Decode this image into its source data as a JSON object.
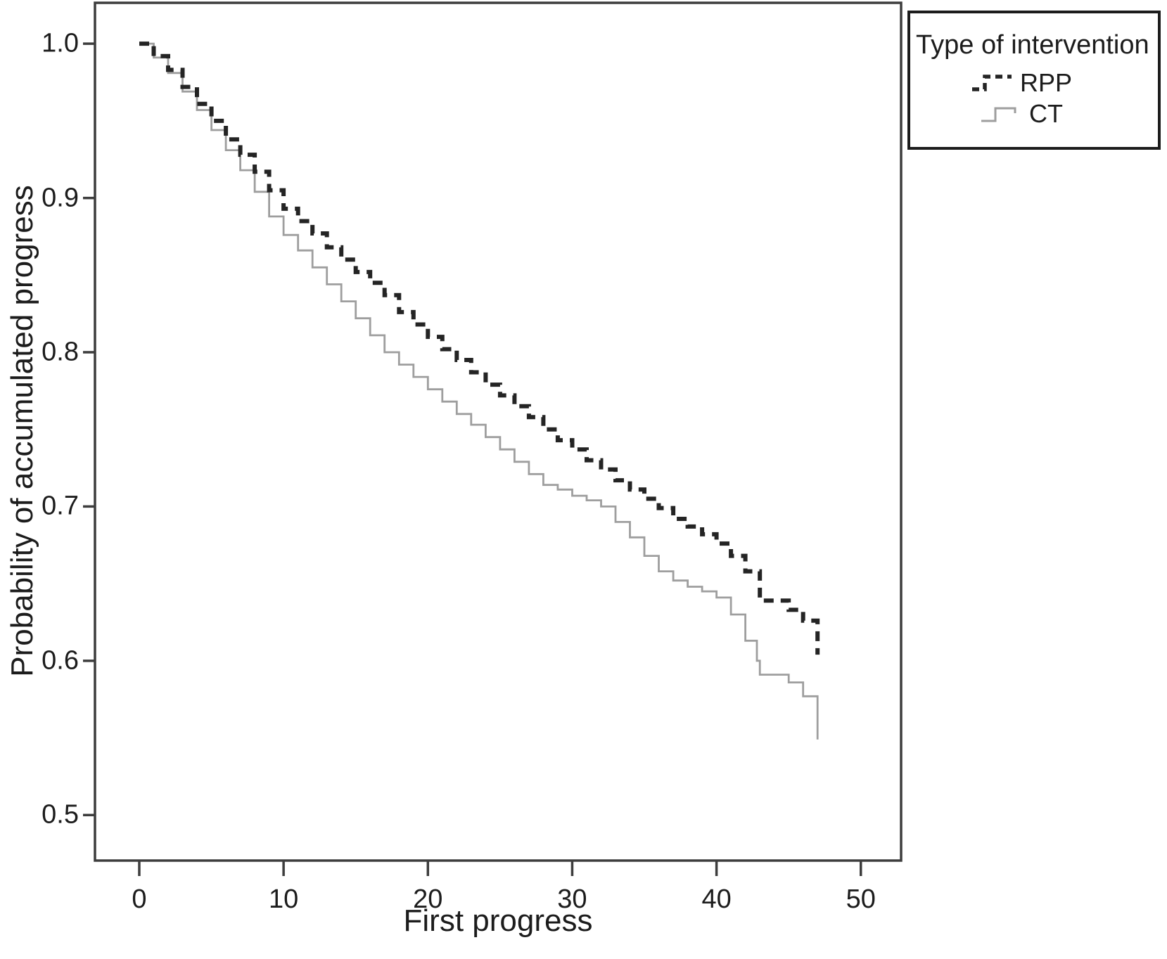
{
  "chart_data": {
    "type": "line",
    "subtype": "kaplan-meier-step",
    "title": "",
    "xlabel": "First progress",
    "ylabel": "Probability of accumulated progress",
    "xlim": [
      -3.07,
      52.79
    ],
    "ylim": [
      0.4705,
      1.0265
    ],
    "grid": false,
    "x_ticks": [
      0,
      10,
      20,
      30,
      40,
      50
    ],
    "x_tick_labels": [
      "0",
      "10",
      "20",
      "30",
      "40",
      "50"
    ],
    "y_ticks": [
      0.5,
      0.6,
      0.7,
      0.8,
      0.9,
      1.0
    ],
    "y_tick_labels": [
      "0.5",
      "0.6",
      "0.7",
      "0.8",
      "0.9",
      "1.0"
    ],
    "axis_color": "#3d3d3d",
    "text_color": "#1c1c1c",
    "legend": {
      "title": "Type of intervention",
      "position": "outside-top-right",
      "entries": [
        {
          "label": "RPP",
          "style": "dashed",
          "color": "#242424"
        },
        {
          "label": "CT",
          "style": "solid",
          "color": "#9e9e9e"
        }
      ]
    },
    "series": [
      {
        "name": "CT",
        "type": "step",
        "color": "#9e9e9e",
        "width": 2.8,
        "dash": null,
        "points": [
          [
            0,
            1.0
          ],
          [
            1,
            0.991
          ],
          [
            2,
            0.981
          ],
          [
            3,
            0.969
          ],
          [
            4,
            0.957
          ],
          [
            5,
            0.944
          ],
          [
            6,
            0.931
          ],
          [
            7,
            0.918
          ],
          [
            8,
            0.904
          ],
          [
            9,
            0.888
          ],
          [
            10,
            0.876
          ],
          [
            11,
            0.866
          ],
          [
            12,
            0.855
          ],
          [
            13,
            0.844
          ],
          [
            14,
            0.833
          ],
          [
            15,
            0.822
          ],
          [
            16,
            0.811
          ],
          [
            17,
            0.8
          ],
          [
            18,
            0.792
          ],
          [
            19,
            0.784
          ],
          [
            20,
            0.776
          ],
          [
            21,
            0.768
          ],
          [
            22,
            0.76
          ],
          [
            23,
            0.753
          ],
          [
            24,
            0.745
          ],
          [
            25,
            0.737
          ],
          [
            26,
            0.729
          ],
          [
            27,
            0.721
          ],
          [
            28,
            0.714
          ],
          [
            29,
            0.711
          ],
          [
            30,
            0.707
          ],
          [
            31,
            0.704
          ],
          [
            32,
            0.7
          ],
          [
            33,
            0.69
          ],
          [
            34,
            0.68
          ],
          [
            35,
            0.668
          ],
          [
            36,
            0.658
          ],
          [
            37,
            0.652
          ],
          [
            38,
            0.648
          ],
          [
            39,
            0.645
          ],
          [
            40,
            0.641
          ],
          [
            41,
            0.63
          ],
          [
            42,
            0.613
          ],
          [
            42.8,
            0.6
          ],
          [
            43,
            0.591
          ],
          [
            45,
            0.586
          ],
          [
            46,
            0.577
          ],
          [
            47,
            0.549
          ]
        ]
      },
      {
        "name": "RPP",
        "type": "step",
        "color": "#242424",
        "width": 6,
        "dash": [
          14,
          10
        ],
        "points": [
          [
            0,
            1.0
          ],
          [
            1,
            0.992
          ],
          [
            2,
            0.983
          ],
          [
            3,
            0.972
          ],
          [
            4,
            0.961
          ],
          [
            5,
            0.95
          ],
          [
            6,
            0.938
          ],
          [
            7,
            0.928
          ],
          [
            8,
            0.917
          ],
          [
            9,
            0.905
          ],
          [
            10,
            0.893
          ],
          [
            11,
            0.885
          ],
          [
            12,
            0.877
          ],
          [
            13,
            0.868
          ],
          [
            14,
            0.86
          ],
          [
            15,
            0.852
          ],
          [
            16,
            0.845
          ],
          [
            17,
            0.837
          ],
          [
            18,
            0.826
          ],
          [
            19,
            0.818
          ],
          [
            20,
            0.81
          ],
          [
            21,
            0.802
          ],
          [
            22,
            0.795
          ],
          [
            23,
            0.787
          ],
          [
            24,
            0.779
          ],
          [
            25,
            0.772
          ],
          [
            26,
            0.765
          ],
          [
            27,
            0.758
          ],
          [
            28,
            0.75
          ],
          [
            29,
            0.743
          ],
          [
            30,
            0.737
          ],
          [
            31,
            0.73
          ],
          [
            32,
            0.724
          ],
          [
            33,
            0.717
          ],
          [
            34,
            0.711
          ],
          [
            35,
            0.705
          ],
          [
            36,
            0.699
          ],
          [
            37,
            0.692
          ],
          [
            38,
            0.687
          ],
          [
            39,
            0.682
          ],
          [
            40,
            0.676
          ],
          [
            41,
            0.668
          ],
          [
            42,
            0.658
          ],
          [
            43,
            0.639
          ],
          [
            45,
            0.633
          ],
          [
            46,
            0.626
          ],
          [
            47,
            0.604
          ]
        ]
      }
    ]
  }
}
